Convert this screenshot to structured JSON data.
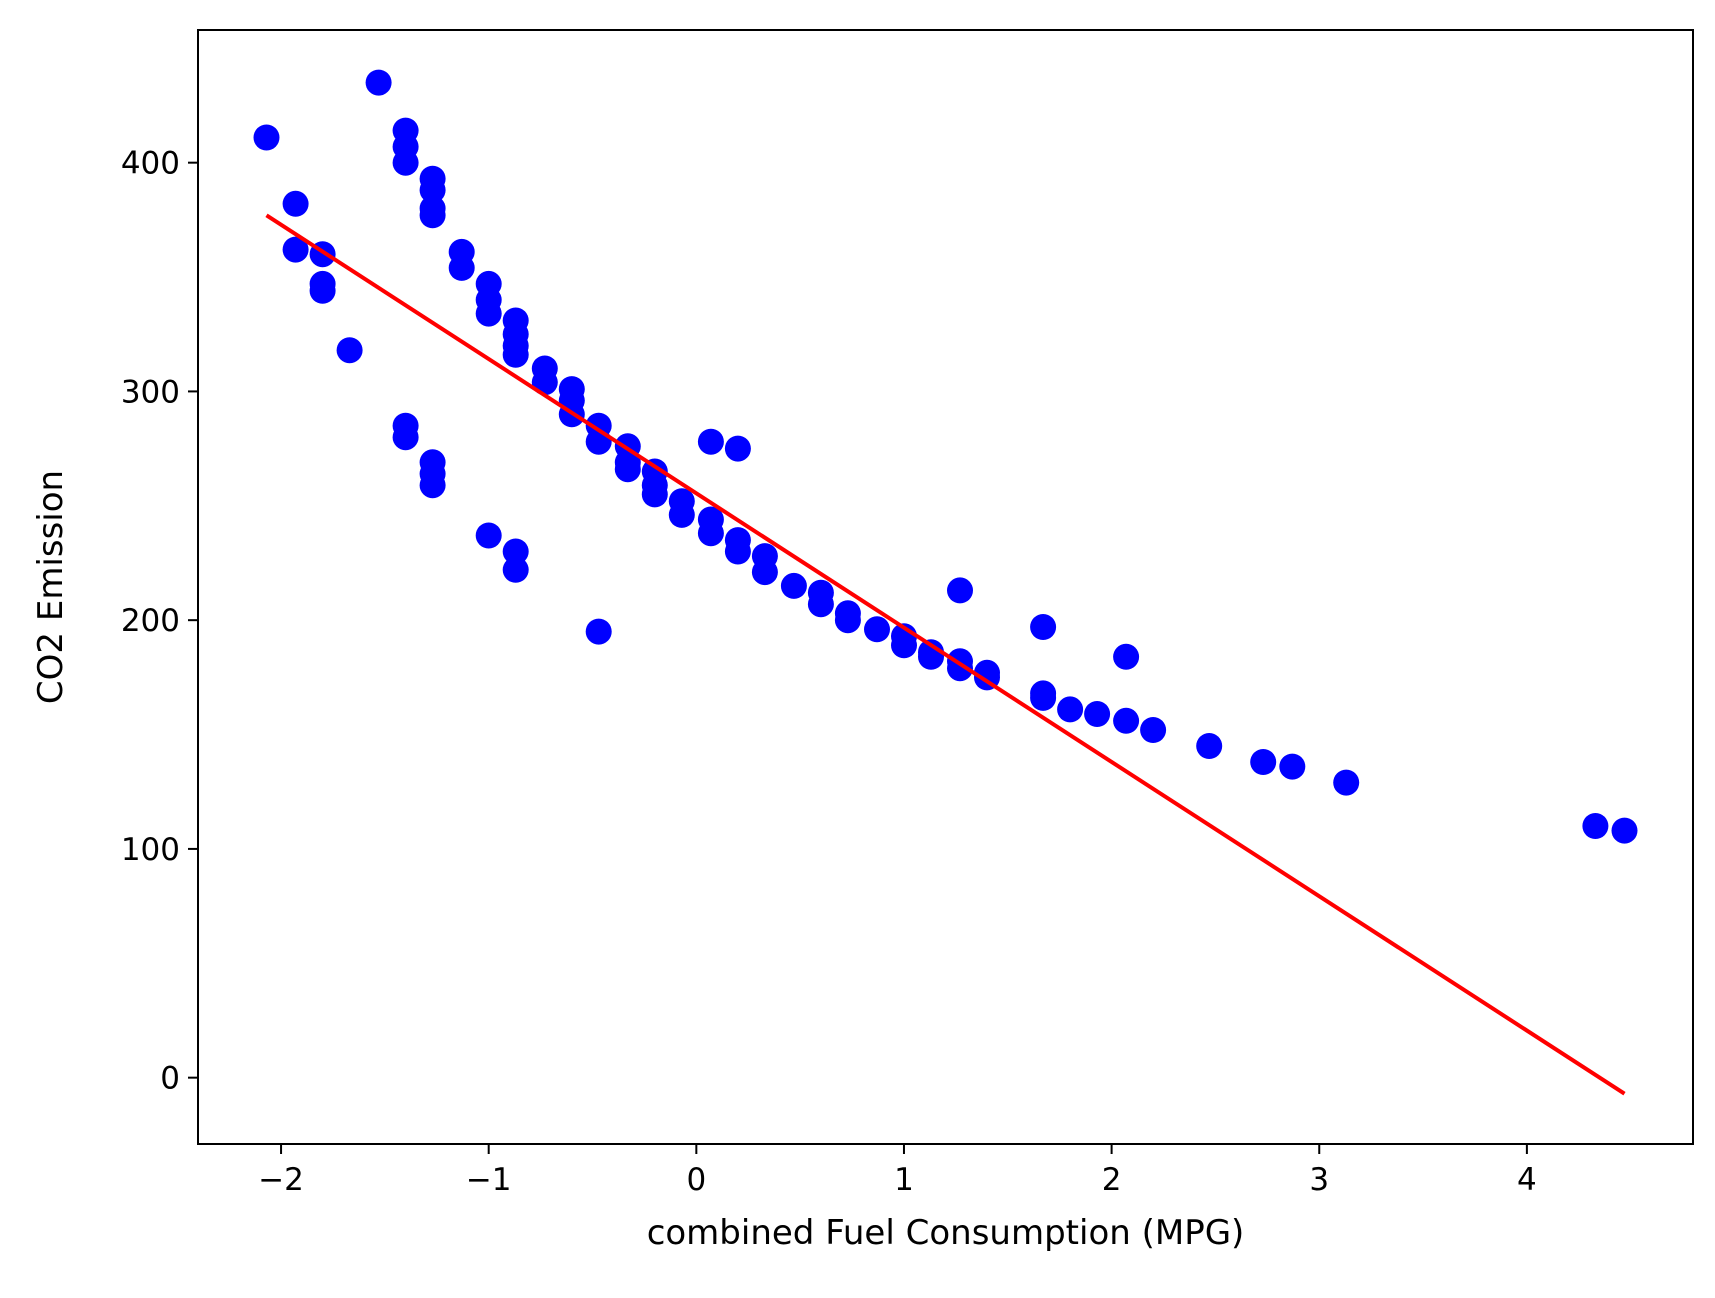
{
  "chart_data": {
    "type": "scatter",
    "title": "",
    "xlabel": "combined Fuel Consumption (MPG)",
    "ylabel": "CO2 Emission",
    "xlim": [
      -2.4,
      4.8
    ],
    "ylim": [
      -29,
      458
    ],
    "x_ticks": [
      -2,
      -1,
      0,
      1,
      2,
      3,
      4
    ],
    "x_tick_labels": [
      "−2",
      "−1",
      "0",
      "1",
      "2",
      "3",
      "4"
    ],
    "y_ticks": [
      0,
      100,
      200,
      300,
      400
    ],
    "y_tick_labels": [
      "0",
      "100",
      "200",
      "300",
      "400"
    ],
    "grid": false,
    "legend": "none",
    "series": [
      {
        "type": "scatter",
        "color": "#0000ff",
        "points": [
          [
            -2.07,
            411
          ],
          [
            -1.93,
            382
          ],
          [
            -1.93,
            362
          ],
          [
            -1.8,
            360
          ],
          [
            -1.8,
            347
          ],
          [
            -1.8,
            344
          ],
          [
            -1.67,
            318
          ],
          [
            -1.53,
            435
          ],
          [
            -1.4,
            414
          ],
          [
            -1.4,
            407
          ],
          [
            -1.4,
            400
          ],
          [
            -1.4,
            285
          ],
          [
            -1.4,
            280
          ],
          [
            -1.27,
            393
          ],
          [
            -1.27,
            388
          ],
          [
            -1.27,
            380
          ],
          [
            -1.27,
            377
          ],
          [
            -1.27,
            269
          ],
          [
            -1.27,
            264
          ],
          [
            -1.27,
            259
          ],
          [
            -1.13,
            361
          ],
          [
            -1.13,
            354
          ],
          [
            -1.0,
            347
          ],
          [
            -1.0,
            340
          ],
          [
            -1.0,
            334
          ],
          [
            -1.0,
            237
          ],
          [
            -0.87,
            331
          ],
          [
            -0.87,
            325
          ],
          [
            -0.87,
            320
          ],
          [
            -0.87,
            316
          ],
          [
            -0.87,
            230
          ],
          [
            -0.87,
            222
          ],
          [
            -0.73,
            310
          ],
          [
            -0.73,
            304
          ],
          [
            -0.6,
            301
          ],
          [
            -0.6,
            296
          ],
          [
            -0.6,
            290
          ],
          [
            -0.47,
            285
          ],
          [
            -0.47,
            278
          ],
          [
            -0.47,
            195
          ],
          [
            -0.33,
            276
          ],
          [
            -0.33,
            269
          ],
          [
            -0.33,
            266
          ],
          [
            -0.2,
            265
          ],
          [
            -0.2,
            259
          ],
          [
            -0.2,
            255
          ],
          [
            -0.07,
            252
          ],
          [
            -0.07,
            246
          ],
          [
            0.07,
            244
          ],
          [
            0.07,
            238
          ],
          [
            0.07,
            278
          ],
          [
            0.2,
            235
          ],
          [
            0.2,
            230
          ],
          [
            0.2,
            275
          ],
          [
            0.33,
            228
          ],
          [
            0.33,
            221
          ],
          [
            0.47,
            215
          ],
          [
            0.6,
            212
          ],
          [
            0.6,
            207
          ],
          [
            0.73,
            203
          ],
          [
            0.73,
            200
          ],
          [
            0.87,
            196
          ],
          [
            1.0,
            193
          ],
          [
            1.0,
            189
          ],
          [
            1.13,
            186
          ],
          [
            1.13,
            184
          ],
          [
            1.27,
            182
          ],
          [
            1.27,
            179
          ],
          [
            1.27,
            213
          ],
          [
            1.4,
            177
          ],
          [
            1.4,
            175
          ],
          [
            1.67,
            168
          ],
          [
            1.67,
            166
          ],
          [
            1.67,
            197
          ],
          [
            1.8,
            161
          ],
          [
            1.93,
            159
          ],
          [
            2.07,
            156
          ],
          [
            2.07,
            184
          ],
          [
            2.2,
            152
          ],
          [
            2.47,
            145
          ],
          [
            2.73,
            138
          ],
          [
            2.87,
            136
          ],
          [
            3.13,
            129
          ],
          [
            4.33,
            110
          ],
          [
            4.47,
            108
          ]
        ]
      },
      {
        "type": "line",
        "color": "#ff0000",
        "points": [
          [
            -2.07,
            377
          ],
          [
            4.47,
            -7
          ]
        ]
      }
    ]
  }
}
